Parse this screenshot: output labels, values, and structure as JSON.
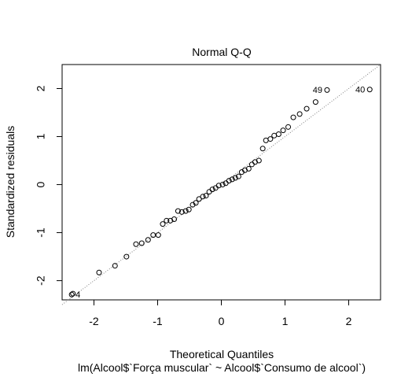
{
  "chart_data": {
    "type": "scatter",
    "title": "Normal Q-Q",
    "xlabel": "Theoretical Quantiles",
    "ylabel": "Standardized residuals",
    "subtitle": "lm(Alcool$`Força muscular` ~ Alcool$`Consumo de alcool`)",
    "xlim": [
      -2.5,
      2.5
    ],
    "ylim": [
      -2.4,
      2.5
    ],
    "x_ticks": [
      -2,
      -1,
      0,
      1,
      2
    ],
    "y_ticks": [
      -2,
      -1,
      0,
      1,
      2
    ],
    "x_tick_labels": [
      "-2",
      "-1",
      "0",
      "1",
      "2"
    ],
    "y_tick_labels": [
      "-2",
      "-1",
      "0",
      "1",
      "2"
    ],
    "grid": false,
    "reference_line": {
      "slope": 1.0,
      "intercept": 0.0,
      "style": "dotted",
      "color": "#808080"
    },
    "points": [
      {
        "x": -2.33,
        "y": -2.27
      },
      {
        "x": -1.92,
        "y": -1.83
      },
      {
        "x": -1.67,
        "y": -1.69
      },
      {
        "x": -1.49,
        "y": -1.5
      },
      {
        "x": -1.34,
        "y": -1.24
      },
      {
        "x": -1.25,
        "y": -1.22
      },
      {
        "x": -1.15,
        "y": -1.15
      },
      {
        "x": -1.07,
        "y": -1.05
      },
      {
        "x": -0.99,
        "y": -1.05
      },
      {
        "x": -0.92,
        "y": -0.82
      },
      {
        "x": -0.86,
        "y": -0.75
      },
      {
        "x": -0.8,
        "y": -0.75
      },
      {
        "x": -0.74,
        "y": -0.72
      },
      {
        "x": -0.68,
        "y": -0.55
      },
      {
        "x": -0.62,
        "y": -0.57
      },
      {
        "x": -0.56,
        "y": -0.55
      },
      {
        "x": -0.51,
        "y": -0.52
      },
      {
        "x": -0.45,
        "y": -0.42
      },
      {
        "x": -0.4,
        "y": -0.38
      },
      {
        "x": -0.35,
        "y": -0.3
      },
      {
        "x": -0.29,
        "y": -0.25
      },
      {
        "x": -0.24,
        "y": -0.23
      },
      {
        "x": -0.19,
        "y": -0.15
      },
      {
        "x": -0.14,
        "y": -0.1
      },
      {
        "x": -0.09,
        "y": -0.07
      },
      {
        "x": -0.04,
        "y": -0.02
      },
      {
        "x": 0.02,
        "y": 0.0
      },
      {
        "x": 0.07,
        "y": 0.03
      },
      {
        "x": 0.12,
        "y": 0.08
      },
      {
        "x": 0.17,
        "y": 0.11
      },
      {
        "x": 0.22,
        "y": 0.14
      },
      {
        "x": 0.27,
        "y": 0.17
      },
      {
        "x": 0.32,
        "y": 0.26
      },
      {
        "x": 0.37,
        "y": 0.3
      },
      {
        "x": 0.43,
        "y": 0.33
      },
      {
        "x": 0.48,
        "y": 0.42
      },
      {
        "x": 0.53,
        "y": 0.47
      },
      {
        "x": 0.59,
        "y": 0.5
      },
      {
        "x": 0.65,
        "y": 0.75
      },
      {
        "x": 0.7,
        "y": 0.92
      },
      {
        "x": 0.77,
        "y": 0.95
      },
      {
        "x": 0.83,
        "y": 1.02
      },
      {
        "x": 0.9,
        "y": 1.05
      },
      {
        "x": 0.97,
        "y": 1.13
      },
      {
        "x": 1.05,
        "y": 1.2
      },
      {
        "x": 1.13,
        "y": 1.4
      },
      {
        "x": 1.23,
        "y": 1.47
      },
      {
        "x": 1.34,
        "y": 1.58
      },
      {
        "x": 1.48,
        "y": 1.72
      },
      {
        "x": 1.66,
        "y": 1.97,
        "label": "49"
      },
      {
        "x": 2.33,
        "y": 1.98,
        "label": "40"
      },
      {
        "x": -2.35,
        "y": -2.29,
        "label": "4"
      }
    ]
  }
}
